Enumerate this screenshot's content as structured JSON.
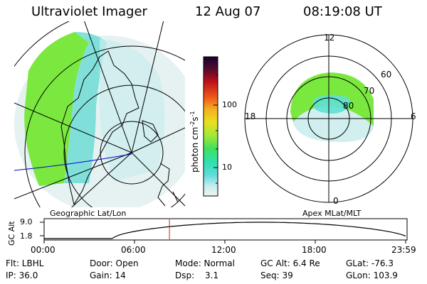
{
  "header": {
    "instrument": "Ultraviolet Imager",
    "date": "12 Aug 07",
    "time": "08:19:08 UT"
  },
  "geo_panel": {
    "label": "Geographic Lat/Lon"
  },
  "polar_panel": {
    "label": "Apex MLat/MLT",
    "mlt_labels": [
      "12",
      "18",
      "6",
      "0"
    ],
    "mlat_labels": [
      "60",
      "70",
      "80"
    ]
  },
  "colorbar": {
    "unit_text": "photon cm",
    "unit_exp1": "-2",
    "unit_mid": "s",
    "unit_exp2": "-1",
    "tick_labels": [
      "100",
      "10"
    ],
    "colors": [
      "#1a0033",
      "#2d0a3d",
      "#4b0a2e",
      "#8a0a1f",
      "#c0101a",
      "#e0201a",
      "#f0601a",
      "#f5b020",
      "#e8e020",
      "#b8e830",
      "#7be840",
      "#40e060",
      "#30e0a0",
      "#40d8d0",
      "#90e4e4",
      "#c8eded",
      "#e0f0f0"
    ]
  },
  "altitude_plot": {
    "ylabel": "GC Alt",
    "y_ticks": [
      "9.0",
      "1.8"
    ],
    "x_ticks": [
      "00:00",
      "06:00",
      "12:00",
      "18:00",
      "23:59"
    ],
    "current_time_hours": 8.319
  },
  "status": {
    "filter": "Flt: LBHL",
    "ip": "IP: 36.0",
    "door": "Door: Open",
    "gain": "Gain: 14",
    "mode": "Mode: Normal",
    "dsp_label": "Dsp:",
    "dsp_value": "3.1",
    "gc_alt": "GC Alt: 6.4 Re",
    "seq": "Seq: 39",
    "glat": "GLat: -76.3",
    "glon": "GLon: 103.9"
  },
  "colors": {
    "auroral": "#7be840",
    "diffuse": "#8fe6e0",
    "line": "#000000",
    "marker": "#cc2200",
    "track": "#0000cc"
  }
}
